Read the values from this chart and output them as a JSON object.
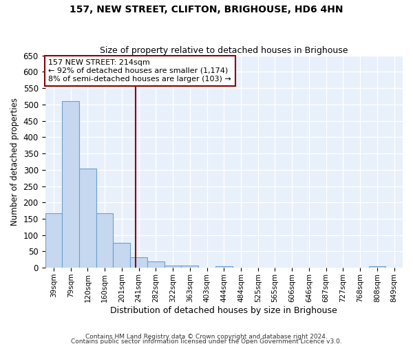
{
  "title1": "157, NEW STREET, CLIFTON, BRIGHOUSE, HD6 4HN",
  "title2": "Size of property relative to detached houses in Brighouse",
  "xlabel": "Distribution of detached houses by size in Brighouse",
  "ylabel": "Number of detached properties",
  "categories": [
    "39sqm",
    "79sqm",
    "120sqm",
    "160sqm",
    "201sqm",
    "241sqm",
    "282sqm",
    "322sqm",
    "363sqm",
    "403sqm",
    "444sqm",
    "484sqm",
    "525sqm",
    "565sqm",
    "606sqm",
    "646sqm",
    "687sqm",
    "727sqm",
    "768sqm",
    "808sqm",
    "849sqm"
  ],
  "values": [
    167,
    510,
    303,
    167,
    77,
    31,
    20,
    6,
    6,
    0,
    5,
    0,
    0,
    0,
    0,
    0,
    0,
    0,
    0,
    5,
    0
  ],
  "bar_color": "#c5d8f0",
  "bar_edge_color": "#6aa0d0",
  "bg_color": "#e8f0fb",
  "grid_color": "#ffffff",
  "ylim": [
    0,
    650
  ],
  "yticks": [
    0,
    50,
    100,
    150,
    200,
    250,
    300,
    350,
    400,
    450,
    500,
    550,
    600,
    650
  ],
  "annotation_line1": "157 NEW STREET: 214sqm",
  "annotation_line2": "← 92% of detached houses are smaller (1,174)",
  "annotation_line3": "8% of semi-detached houses are larger (103) →",
  "vline_color": "#8b0000",
  "ann_box_color": "#8b0000",
  "footer1": "Contains HM Land Registry data © Crown copyright and database right 2024.",
  "footer2": "Contains public sector information licensed under the Open Government Licence v3.0."
}
